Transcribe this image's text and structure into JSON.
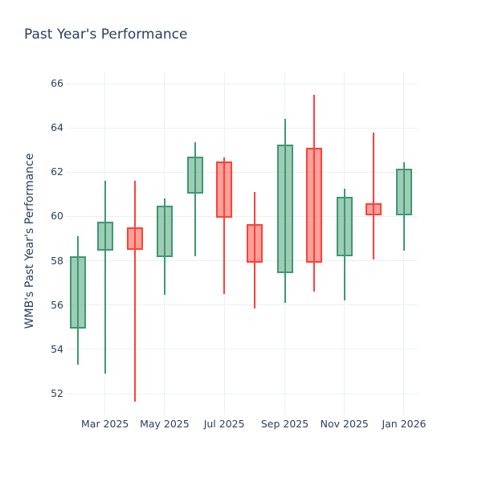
{
  "header": {
    "title": "Past Year's Performance"
  },
  "colors": {
    "background": "#ffffff",
    "text": "#2a3f5f",
    "grid": "#EBF0F8",
    "increasing_line": "#3D9970",
    "increasing_fill": "rgba(61,153,112,0.5)",
    "decreasing_line": "#FF4136",
    "decreasing_fill": "rgba(255,65,54,0.5)"
  },
  "chart_data": {
    "type": "candlestick",
    "title": "Past Year's Performance",
    "xlabel": "",
    "ylabel": "WMB's Past Year's Performance",
    "x_tick_labels": [
      "Mar 2025",
      "May 2025",
      "Jul 2025",
      "Sep 2025",
      "Nov 2025",
      "Jan 2026"
    ],
    "y_tick_labels": [
      52,
      54,
      56,
      58,
      60,
      62,
      64,
      66
    ],
    "ylim": [
      51.2,
      66.5
    ],
    "grid": true,
    "legend": "none",
    "candles": [
      {
        "month": "Feb 2025",
        "open": 54.95,
        "high": 59.1,
        "low": 53.3,
        "close": 58.2,
        "direction": "increasing"
      },
      {
        "month": "Mar 2025",
        "open": 58.45,
        "high": 61.6,
        "low": 52.9,
        "close": 59.75,
        "direction": "increasing"
      },
      {
        "month": "Apr 2025",
        "open": 59.5,
        "high": 61.6,
        "low": 51.65,
        "close": 58.5,
        "direction": "decreasing"
      },
      {
        "month": "May 2025",
        "open": 58.15,
        "high": 60.8,
        "low": 56.45,
        "close": 60.5,
        "direction": "increasing"
      },
      {
        "month": "Jun 2025",
        "open": 61.05,
        "high": 63.35,
        "low": 58.2,
        "close": 62.7,
        "direction": "increasing"
      },
      {
        "month": "Jul 2025",
        "open": 62.5,
        "high": 62.65,
        "low": 56.5,
        "close": 59.95,
        "direction": "decreasing"
      },
      {
        "month": "Aug 2025",
        "open": 59.65,
        "high": 61.1,
        "low": 55.85,
        "close": 57.9,
        "direction": "decreasing"
      },
      {
        "month": "Sep 2025",
        "open": 57.45,
        "high": 64.4,
        "low": 56.1,
        "close": 63.25,
        "direction": "increasing"
      },
      {
        "month": "Oct 2025",
        "open": 63.1,
        "high": 65.5,
        "low": 56.6,
        "close": 57.9,
        "direction": "decreasing"
      },
      {
        "month": "Nov 2025",
        "open": 58.2,
        "high": 61.25,
        "low": 56.2,
        "close": 60.9,
        "direction": "increasing"
      },
      {
        "month": "Dec 2025",
        "open": 60.6,
        "high": 63.8,
        "low": 58.05,
        "close": 60.05,
        "direction": "decreasing"
      },
      {
        "month": "Jan 2026",
        "open": 60.05,
        "high": 62.45,
        "low": 58.45,
        "close": 62.15,
        "direction": "increasing"
      }
    ]
  }
}
